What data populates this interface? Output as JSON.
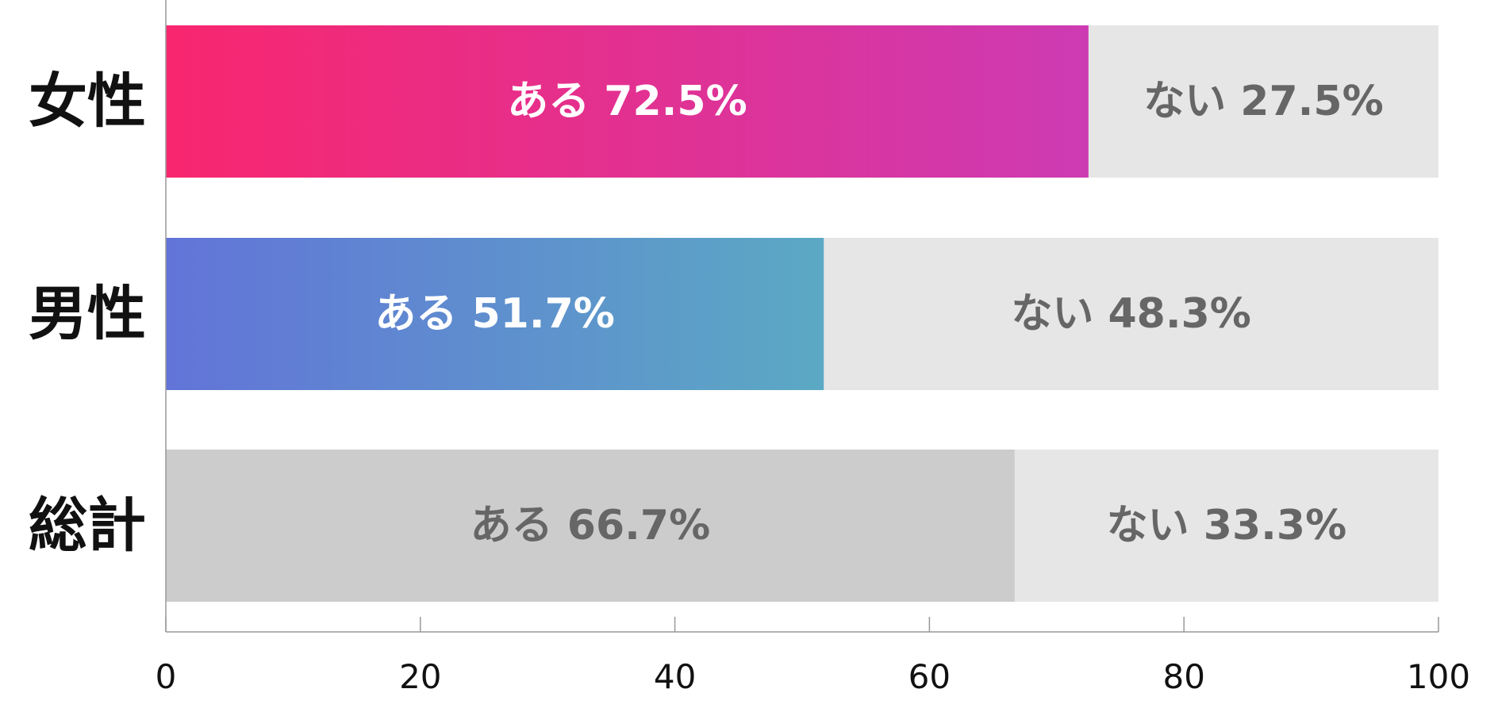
{
  "chart_data": {
    "type": "bar",
    "orientation": "horizontal",
    "stacked": true,
    "categories": [
      "女性",
      "男性",
      "総計"
    ],
    "series": [
      {
        "key": "yes",
        "label": "ある",
        "values": [
          72.5,
          51.7,
          66.7
        ]
      },
      {
        "key": "no",
        "label": "ない",
        "values": [
          27.5,
          48.3,
          33.3
        ]
      }
    ],
    "value_labels": {
      "yes": [
        "ある 72.5%",
        "ある 51.7%",
        "ある 66.7%"
      ],
      "no": [
        "ない 27.5%",
        "ない 48.3%",
        "ない 33.3%"
      ]
    },
    "xlim": [
      0,
      100
    ],
    "xticks": [
      0,
      20,
      40,
      60,
      80,
      100
    ],
    "xtick_labels": [
      "0",
      "20",
      "40",
      "60",
      "80",
      "100"
    ],
    "title": "",
    "xlabel": "",
    "ylabel": "",
    "grid": false,
    "legend": "none",
    "colors": {
      "female_yes_gradient": [
        "#f8266e",
        "#cd3bb3"
      ],
      "male_yes_gradient": [
        "#6274d8",
        "#5ba9c4"
      ],
      "total_yes": "#cccccc",
      "no": "#e6e6e6",
      "label_on_color": "#ffffff",
      "label_on_gray": "#666666",
      "axis": "#999999"
    }
  }
}
